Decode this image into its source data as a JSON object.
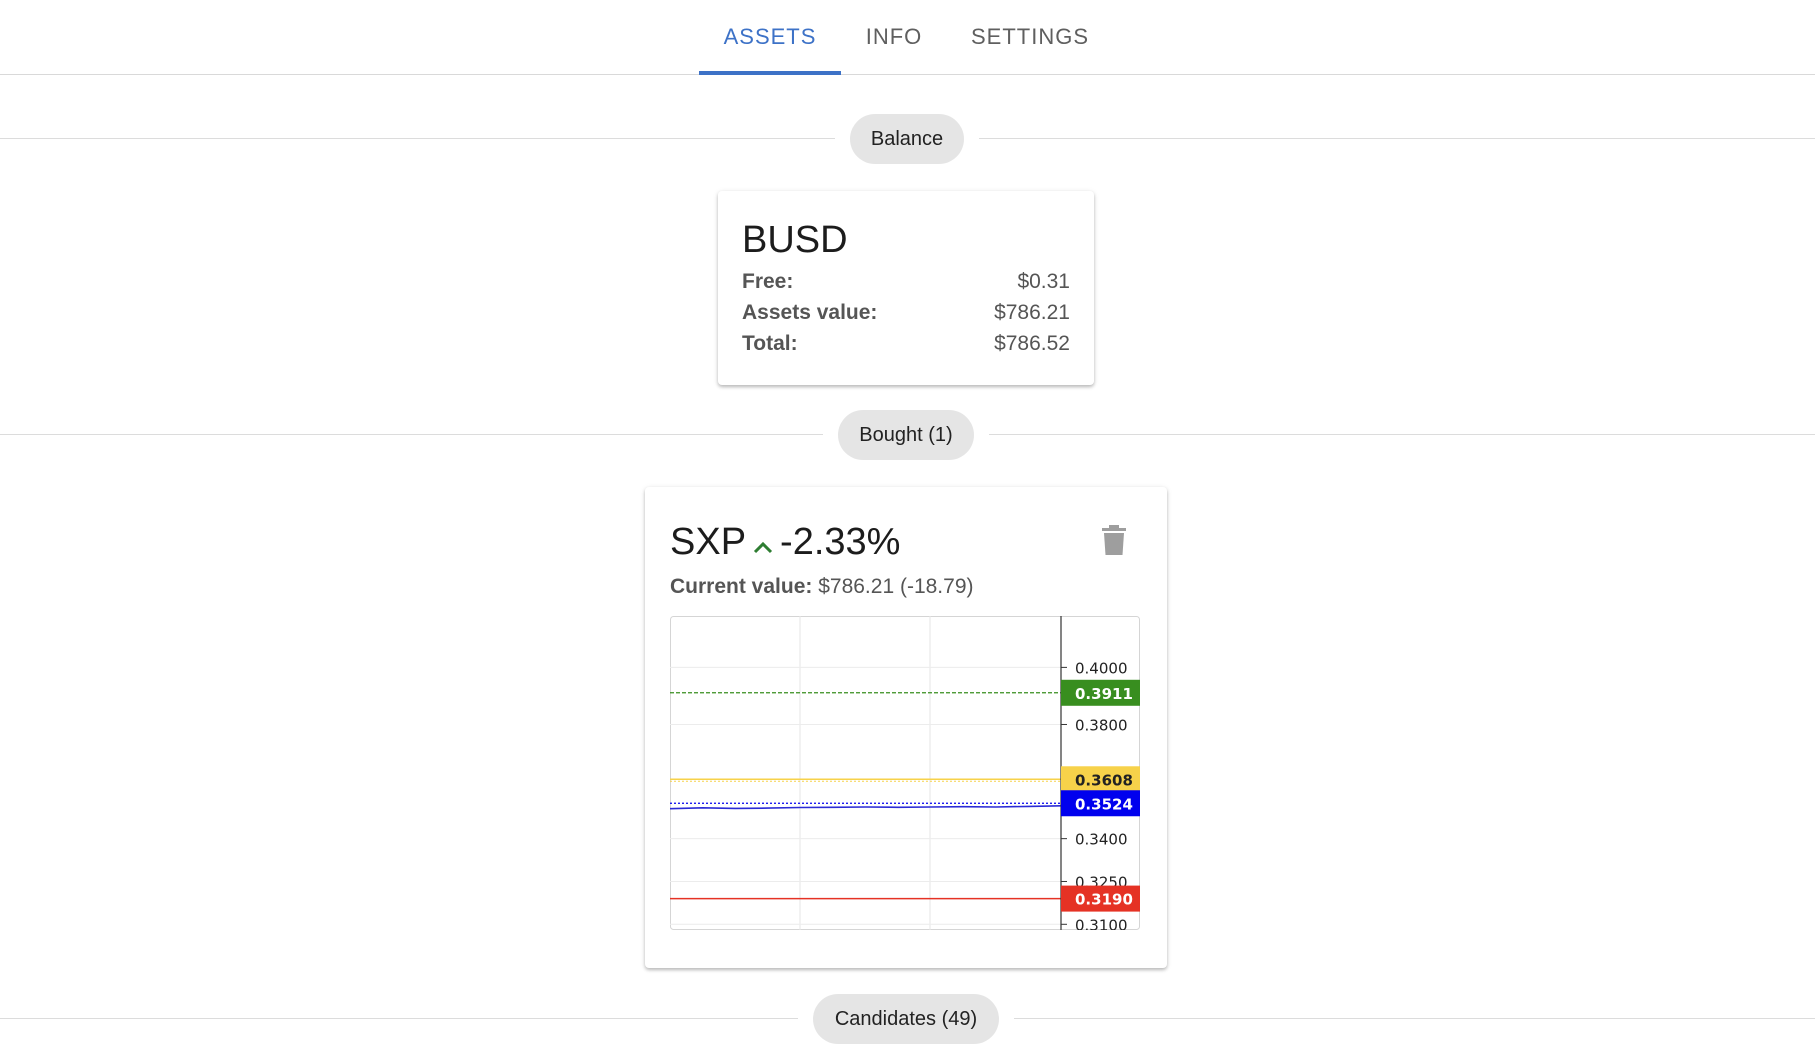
{
  "tabs": [
    {
      "label": "ASSETS",
      "active": true
    },
    {
      "label": "INFO",
      "active": false
    },
    {
      "label": "SETTINGS",
      "active": false
    }
  ],
  "sections": {
    "balance": "Balance",
    "bought": "Bought (1)",
    "candidates": "Candidates (49)"
  },
  "balance_card": {
    "title": "BUSD",
    "rows": [
      {
        "label": "Free:",
        "value": "$0.31"
      },
      {
        "label": "Assets value:",
        "value": "$786.21"
      },
      {
        "label": "Total:",
        "value": "$786.52"
      }
    ]
  },
  "asset_card": {
    "symbol": "SXP",
    "trend_icon": "chevron-up-icon",
    "change": "-2.33%",
    "current_value_label": "Current value:",
    "current_value": "$786.21 (-18.79)",
    "delete_icon": "trash-icon"
  },
  "colors": {
    "accent": "#3d72c7",
    "trend_up": "#2e7d32",
    "price_line": "#2b2bd6",
    "sell_target": "#388e1f",
    "buy_price": "#f7d24a",
    "current": "#0000ee",
    "stop_loss": "#e53224"
  },
  "chart_data": {
    "type": "line",
    "ylim": [
      0.308,
      0.418
    ],
    "y_ticks": [
      {
        "label": "0.4000",
        "value": 0.4
      },
      {
        "label": "0.3800",
        "value": 0.38
      },
      {
        "label": "0.3400",
        "value": 0.34
      },
      {
        "label": "0.3250",
        "value": 0.325
      },
      {
        "label": "0.3100",
        "value": 0.31
      }
    ],
    "price_series": [
      0.3505,
      0.3508,
      0.3506,
      0.3507,
      0.3509,
      0.351,
      0.3511,
      0.351,
      0.3511,
      0.3512,
      0.3511,
      0.3513,
      0.3515
    ],
    "levels": [
      {
        "label": "0.3911",
        "value": 0.3911,
        "color": "#388e1f",
        "text_color": "#ffffff",
        "style": "dashed"
      },
      {
        "label": "0.3608",
        "value": 0.3608,
        "color": "#f7d24a",
        "text_color": "#222222",
        "style": "solid"
      },
      {
        "label": "0.3524",
        "value": 0.3524,
        "color": "#0000ee",
        "text_color": "#ffffff",
        "style": "dotted"
      },
      {
        "label": "0.3190",
        "value": 0.319,
        "color": "#e53224",
        "text_color": "#ffffff",
        "style": "solid"
      }
    ],
    "grid": true
  }
}
